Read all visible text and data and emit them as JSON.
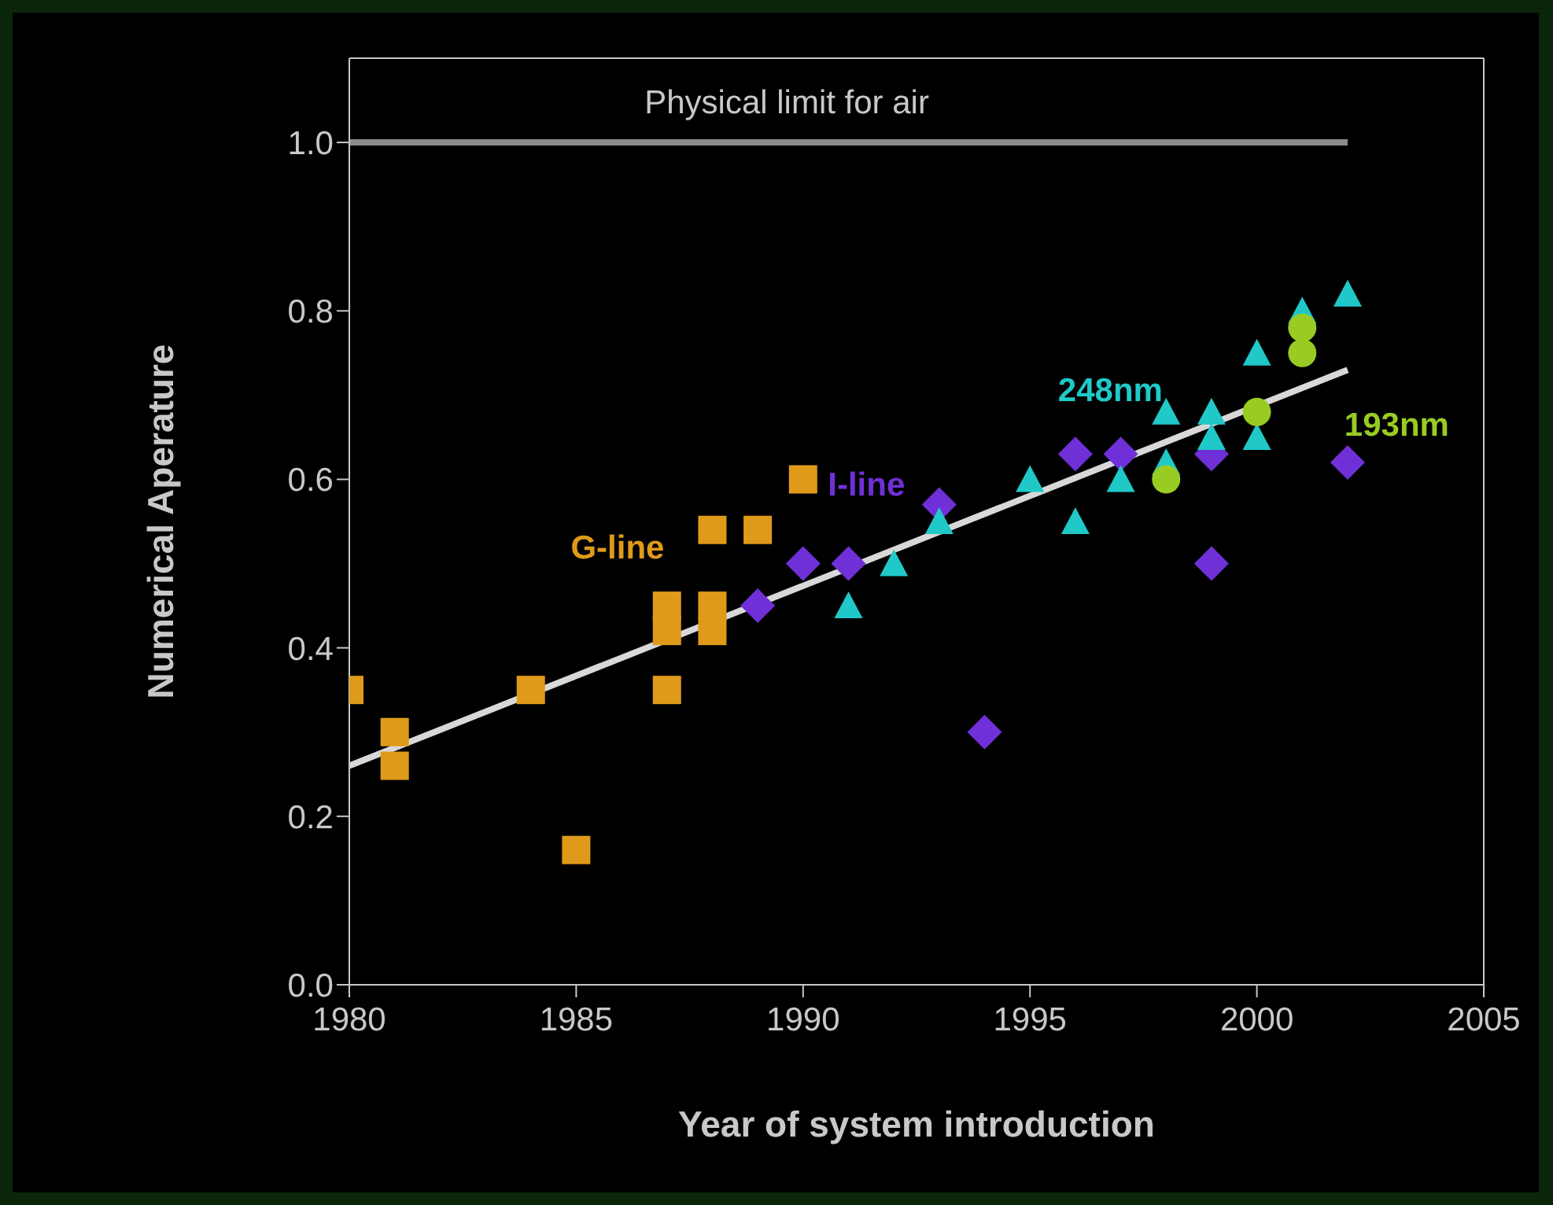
{
  "chart_data": {
    "type": "scatter",
    "xlabel": "Year of system introduction",
    "ylabel": "Numerical Aperature",
    "xlim": [
      1980,
      2005
    ],
    "xticks": [
      1980,
      1985,
      1990,
      1995,
      2000,
      2005
    ],
    "ylim": [
      0,
      1.1
    ],
    "yticks": [
      {
        "value": 0,
        "label": "0.0"
      },
      0.2,
      0.4,
      0.6,
      0.8,
      {
        "value": 1,
        "label": "1.0"
      }
    ],
    "series": [
      {
        "name": "Physical limit for air",
        "type": "line",
        "color": "#8c8c8c",
        "marker": "none",
        "x": [
          1980,
          2002
        ],
        "values": [
          1.0,
          1.0
        ]
      },
      {
        "type": "line",
        "color": "#d8d8d8",
        "marker": "none",
        "x": [
          1980,
          2002
        ],
        "values": [
          0.26,
          0.73
        ]
      },
      {
        "name": "G-line",
        "type": "scatter",
        "color": "#e09a1a",
        "marker": "square",
        "x": [
          1980,
          1981,
          1981,
          1984,
          1985,
          1987,
          1987,
          1987,
          1988,
          1988,
          1988,
          1989,
          1990
        ],
        "values": [
          0.35,
          0.3,
          0.26,
          0.35,
          0.16,
          0.45,
          0.42,
          0.35,
          0.54,
          0.45,
          0.42,
          0.54,
          0.6
        ]
      },
      {
        "name": "I-line",
        "type": "scatter",
        "color": "#7030d8",
        "marker": "diamond",
        "x": [
          1989,
          1990,
          1991,
          1993,
          1994,
          1996,
          1997,
          1999,
          1999,
          2002
        ],
        "values": [
          0.45,
          0.5,
          0.5,
          0.57,
          0.3,
          0.63,
          0.63,
          0.63,
          0.5,
          0.62
        ]
      },
      {
        "name": "248nm",
        "type": "scatter",
        "color": "#20c8c8",
        "marker": "triangle",
        "x": [
          1991,
          1992,
          1993,
          1995,
          1996,
          1997,
          1998,
          1998,
          1999,
          1999,
          2000,
          2000,
          2001,
          2002
        ],
        "values": [
          0.45,
          0.5,
          0.55,
          0.6,
          0.55,
          0.6,
          0.68,
          0.62,
          0.68,
          0.65,
          0.75,
          0.65,
          0.8,
          0.82
        ]
      },
      {
        "name": "193nm",
        "type": "scatter",
        "color": "#99cc22",
        "marker": "circle",
        "x": [
          1998,
          2000,
          2001,
          2001
        ],
        "values": [
          0.6,
          0.68,
          0.78,
          0.75
        ]
      }
    ]
  }
}
